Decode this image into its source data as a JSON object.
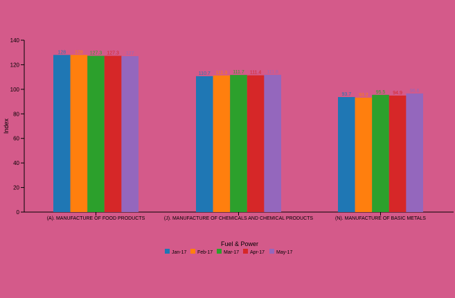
{
  "chart_data": {
    "type": "bar",
    "title": "",
    "xlabel": "",
    "ylabel": "Index",
    "ylim": [
      0,
      140
    ],
    "yticks": [
      0,
      20,
      40,
      60,
      80,
      100,
      120,
      140
    ],
    "categories": [
      "(A). MANUFACTURE OF FOOD PRODUCTS",
      "(J). MANUFACTURE OF CHEMICALS AND CHEMICAL PRODUCTS",
      "(N). MANUFACTURE OF BASIC METALS"
    ],
    "series": [
      {
        "name": "Jan-17",
        "color": "#1f77b4",
        "values": [
          128,
          110.7,
          93.7
        ]
      },
      {
        "name": "Feb-17",
        "color": "#ff7f0e",
        "values": [
          128,
          111.3,
          93.2
        ]
      },
      {
        "name": "Mar-17",
        "color": "#2ca02c",
        "values": [
          127.3,
          111.7,
          95.5
        ]
      },
      {
        "name": "Apr-17",
        "color": "#d62728",
        "values": [
          127.3,
          111.4,
          94.9
        ]
      },
      {
        "name": "May-17",
        "color": "#9467bd",
        "values": [
          127,
          111.8,
          96.6
        ]
      }
    ],
    "legend_title": "Fuel & Power",
    "legend_position": "bottom",
    "grid": false
  }
}
